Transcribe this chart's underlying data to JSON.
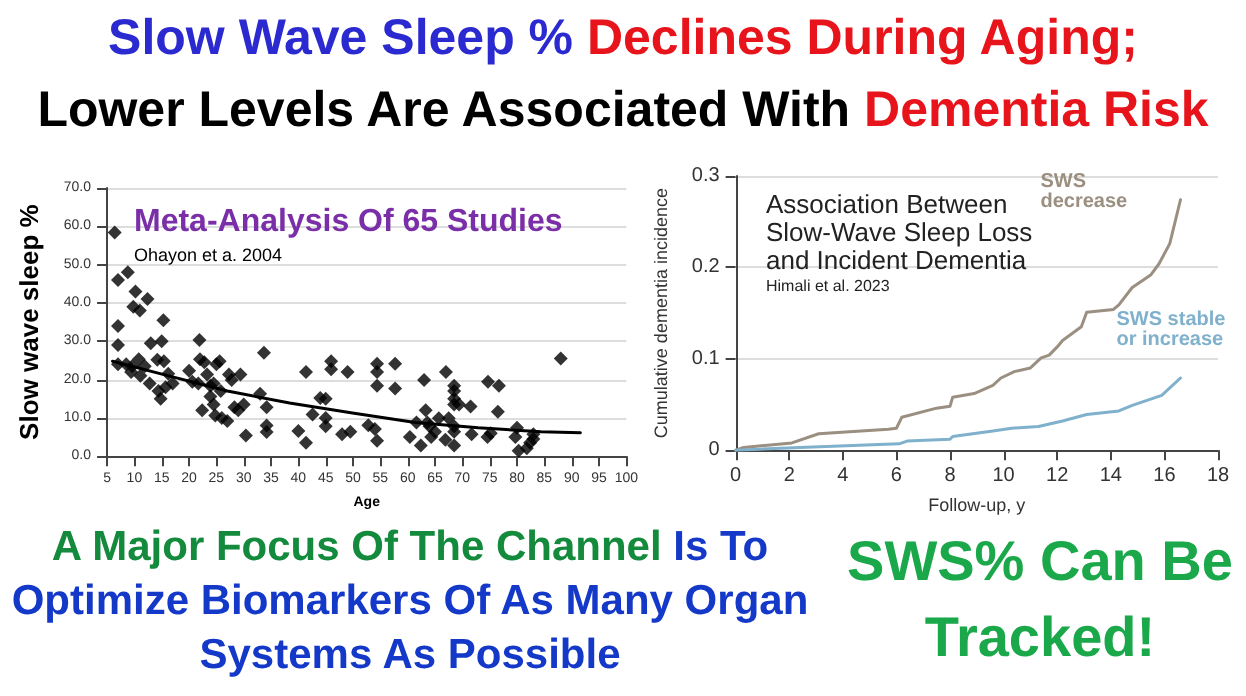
{
  "chart_data": [
    {
      "type": "scatter",
      "title": "Meta-Analysis Of 65 Studies",
      "subtitle": "Ohayon et a. 2004",
      "xlabel": "Age",
      "ylabel": "Slow wave sleep %",
      "annotations": [
        "Slow Wave Sleep %",
        "Declines During Aging;",
        "Lower Levels Are Associated With",
        "Dementia Risk",
        "A Major Focus Of The Channel",
        "Is To Optimize Biomarkers Of As Many Organ Systems As Possible"
      ],
      "xlim": [
        5,
        100
      ],
      "xticks": [
        5,
        10,
        15,
        20,
        25,
        30,
        35,
        40,
        45,
        50,
        55,
        60,
        65,
        70,
        75,
        80,
        85,
        90,
        95,
        100
      ],
      "ylim": [
        0,
        70
      ],
      "yticks": [
        {
          "value": 0,
          "label": "0.0"
        },
        {
          "value": 10,
          "label": "10.0"
        },
        {
          "value": 20,
          "label": "20.0"
        },
        {
          "value": 30,
          "label": "30.0"
        },
        {
          "value": 40,
          "label": "40.0"
        },
        {
          "value": 50,
          "label": "50.0"
        },
        {
          "value": 60,
          "label": "60.0"
        },
        {
          "value": 70,
          "label": "70.0"
        }
      ],
      "grid": "y",
      "legend": false,
      "marker": "diamond",
      "series": [
        {
          "color": "#000000",
          "x": [
            6.4,
            7,
            7,
            7,
            8.8,
            10.2,
            9.8,
            11,
            12.4,
            13,
            15,
            15.3,
            21.9,
            33.7,
            88,
            7,
            8.5,
            9.6,
            9.4,
            10.8,
            11.1,
            11.9,
            12.8,
            14.2,
            14.4,
            14.8,
            15.4,
            15.7,
            16.2,
            17,
            20,
            20.6,
            21.7,
            22,
            22.4,
            22.8,
            23.3,
            23.9,
            23.9,
            24.5,
            24.5,
            24.8,
            25,
            25.6,
            25.8,
            26,
            27,
            27.3,
            27.8,
            28.3,
            29,
            29.4,
            30,
            30.4,
            33,
            34.2,
            34.2,
            34.2,
            40,
            41.4,
            42.6,
            41.4,
            44,
            45,
            45,
            45,
            46,
            46,
            49,
            48,
            49.5,
            52.8,
            54,
            54.4,
            54.4,
            54.4,
            54.4,
            57.7,
            57.7,
            60.4,
            61.6,
            62.4,
            63,
            63.3,
            63.6,
            64,
            64.3,
            65,
            65.7,
            66.9,
            67,
            67.5,
            68.5,
            68.5,
            68.5,
            68.5,
            68.5,
            68.5,
            68.5,
            69.4,
            71.5,
            71.7,
            74.7,
            74.6,
            75.2,
            76.7,
            76.5,
            80,
            79.7,
            80.3,
            81.8,
            82.4,
            83,
            83
          ],
          "values": [
            58.4,
            46,
            34,
            29,
            48,
            43,
            39,
            38,
            41,
            29.5,
            30,
            35.5,
            30.3,
            27,
            25.5,
            24,
            24,
            23.5,
            22,
            25.3,
            21,
            23.5,
            19,
            25.2,
            17,
            15,
            24.8,
            18,
            21.5,
            19,
            22.3,
            19.4,
            19,
            25.3,
            12,
            24.5,
            21.3,
            18.4,
            15.6,
            19,
            13.5,
            10.6,
            24,
            24.8,
            17,
            10,
            9.2,
            21.3,
            19.9,
            12.8,
            12,
            21.3,
            13.5,
            5.4,
            16.3,
            12.8,
            8,
            6.3,
            6.6,
            22,
            10.9,
            3.5,
            15.2,
            15,
            10,
            7.8,
            24.8,
            22.7,
            22,
            5.7,
            6.4,
            8.1,
            7.1,
            24.1,
            22,
            18.4,
            4,
            24.1,
            17.7,
            5,
            8.8,
            2.8,
            19.9,
            12,
            8.8,
            7.8,
            5,
            6.4,
            9.9,
            4.3,
            22,
            9.9,
            18.4,
            17,
            15,
            13.5,
            7.8,
            6.4,
            2.8,
            13.5,
            13,
            5.7,
            19.4,
            5,
            6,
            18.4,
            11.6,
            7.4,
            5,
            1.4,
            2.1,
            3.5,
            5.7,
            4.5
          ]
        },
        {
          "type": "line",
          "marker": "none",
          "line_style": "solid",
          "color": "#000000",
          "x": [
            6,
            15.4,
            27,
            38.4,
            49.9,
            61.4,
            72.9,
            84.4,
            91.6
          ],
          "values": [
            24.8,
            21.3,
            17,
            13.9,
            11.3,
            8.8,
            7.4,
            6.4,
            6.1
          ]
        }
      ]
    },
    {
      "type": "line",
      "title": "Association Between\nSlow-Wave Sleep Loss\nand Incident Dementia",
      "subtitle": "Himali et al. 2023",
      "xlabel": "Follow-up, y",
      "ylabel": "Cumulative dementia incidence",
      "annotations": [
        "SWS% Can Be Tracked!"
      ],
      "xlim": [
        0,
        18
      ],
      "xticks": [
        0,
        2,
        4,
        6,
        8,
        10,
        12,
        14,
        16,
        18
      ],
      "ylim": [
        0,
        0.3
      ],
      "yticks": [
        0,
        0.1,
        0.2,
        0.3
      ],
      "grid": "y",
      "legend": false,
      "marker": "none",
      "line_style": "solid",
      "series": [
        {
          "name": "SWS decrease",
          "color": "#9a8f80",
          "x": [
            0,
            0.3,
            2.1,
            3.1,
            5.7,
            6,
            6.2,
            7.5,
            8,
            8.1,
            8.9,
            9.6,
            9.9,
            10.4,
            11,
            11.4,
            11.7,
            12,
            12.2,
            12.9,
            13.1,
            14.1,
            14.3,
            14.8,
            15.5,
            15.8,
            16.2,
            16.6
          ],
          "values": [
            0,
            0.003,
            0.008,
            0.018,
            0.023,
            0.024,
            0.036,
            0.046,
            0.048,
            0.058,
            0.062,
            0.071,
            0.079,
            0.086,
            0.09,
            0.101,
            0.104,
            0.113,
            0.12,
            0.135,
            0.151,
            0.154,
            0.159,
            0.178,
            0.192,
            0.204,
            0.226,
            0.274
          ]
        },
        {
          "name": "SWS stable or increase",
          "color": "#7fb0cc",
          "x": [
            0,
            2.4,
            6.1,
            6.4,
            8,
            8.1,
            9.6,
            10.3,
            11.3,
            12.2,
            13.1,
            14.3,
            14.8,
            15.9,
            16.6
          ],
          "values": [
            0,
            0.003,
            0.007,
            0.01,
            0.012,
            0.015,
            0.021,
            0.024,
            0.026,
            0.032,
            0.039,
            0.043,
            0.049,
            0.06,
            0.079
          ]
        }
      ]
    }
  ]
}
